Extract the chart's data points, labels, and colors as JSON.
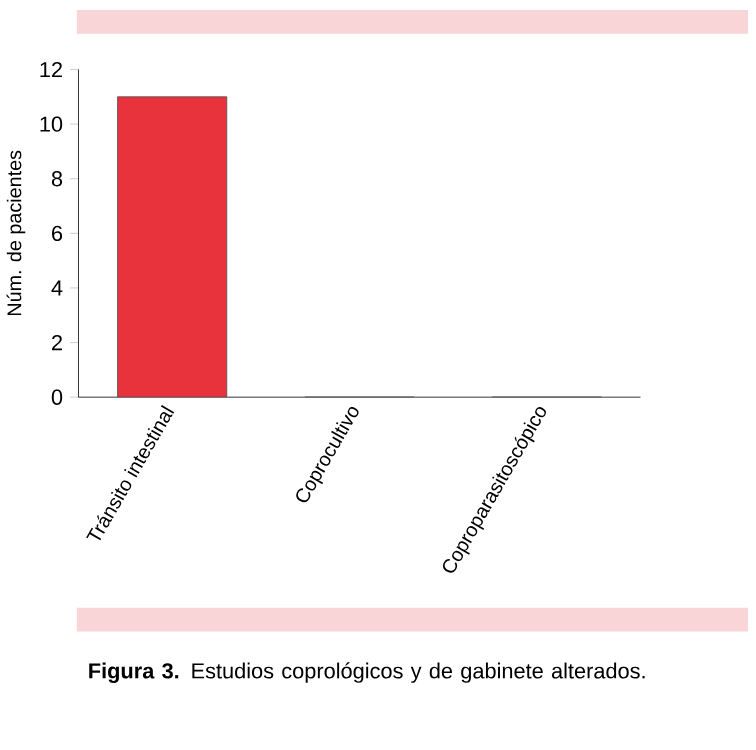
{
  "chart_data": {
    "type": "bar",
    "ylabel": "Núm. de pacientes",
    "categories": [
      "Tránsito intestinal",
      "Coprocultivo",
      "Coproparasitoscópico"
    ],
    "values": [
      11,
      0,
      0
    ],
    "color": "#e8323c",
    "ylim": [
      0,
      12
    ],
    "yticks": [
      0,
      2,
      4,
      6,
      8,
      10,
      12
    ],
    "grid": false,
    "annotations": [
      "**Figura 3.** Estudios coprológicos y de gabinete alterados."
    ]
  }
}
